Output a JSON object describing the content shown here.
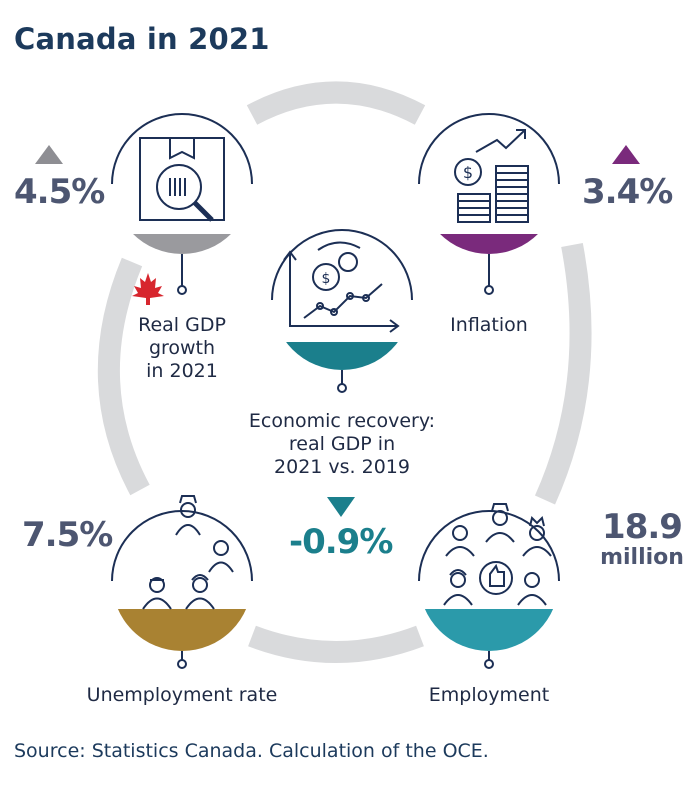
{
  "title": "Canada in 2021",
  "source": "Source: Statistics Canada. Calculation of the OCE.",
  "colors": {
    "gdp": "#9a9a9e",
    "inflation": "#7a2a7c",
    "recovery": "#1b7f8c",
    "unemployment": "#a98232",
    "employment": "#2b9aaa",
    "ring": "#d9dadc",
    "outline": "#1c2f55"
  },
  "indicators": {
    "gdp": {
      "label": [
        "Real GDP",
        "growth",
        "in 2021"
      ],
      "value": "4.5%",
      "trend": "up",
      "icon": "box-magnifier-icon",
      "flag": "maple-leaf-icon"
    },
    "inflation": {
      "label": [
        "Inflation"
      ],
      "value": "3.4%",
      "trend": "up",
      "icon": "coins-growth-icon"
    },
    "recovery": {
      "label": [
        "Economic recovery:",
        "real GDP in",
        "2021 vs. 2019"
      ],
      "value": "-0.9%",
      "trend": "down",
      "icon": "growth-chart-gears-icon"
    },
    "unemployment": {
      "label": [
        "Unemployment rate"
      ],
      "value": "7.5%",
      "icon": "workers-icon"
    },
    "employment": {
      "label": [
        "Employment"
      ],
      "value": [
        "18.9",
        "million"
      ],
      "icon": "workers-thumbs-up-icon"
    }
  }
}
